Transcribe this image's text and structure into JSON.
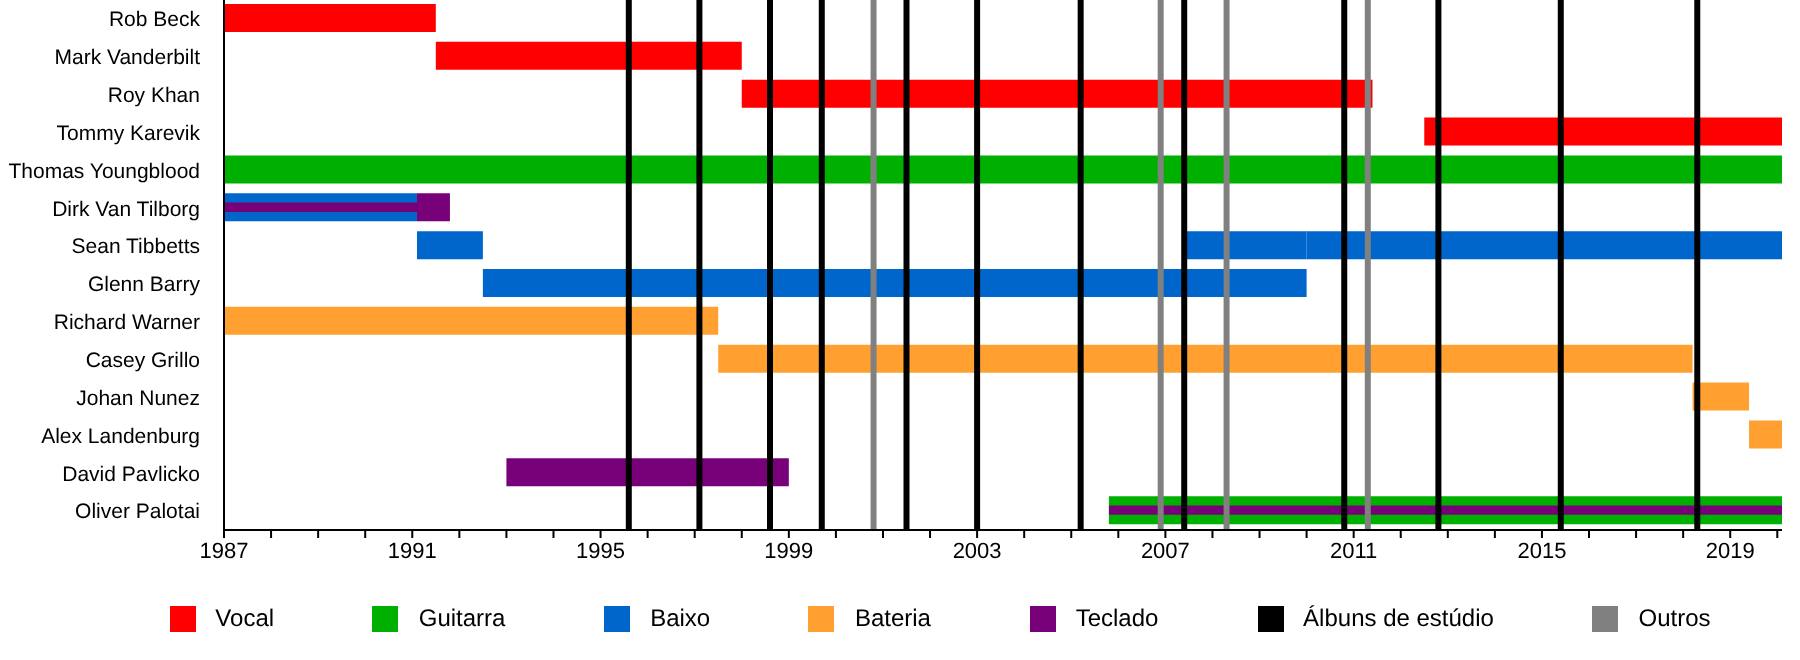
{
  "chart_data": {
    "type": "bar",
    "orientation": "horizontal",
    "categories": [
      "Rob Beck",
      "Mark Vanderbilt",
      "Roy Khan",
      "Tommy Karevik",
      "Thomas Youngblood",
      "Dirk Van Tilborg",
      "Sean Tibbetts",
      "Glenn Barry",
      "Richard Warner",
      "Casey Grillo",
      "Johan Nunez",
      "Alex Landenburg",
      "David Pavlicko",
      "Oliver Palotai"
    ],
    "series": [
      {
        "name": "Vocal",
        "color": "#ff0000",
        "base": [
          1987,
          1991.5,
          1998.0,
          2012.5,
          null,
          null,
          null,
          null,
          null,
          null,
          null,
          null,
          null,
          null
        ],
        "values": [
          4.5,
          6.5,
          13.4,
          7.6,
          null,
          null,
          null,
          null,
          null,
          null,
          null,
          null,
          null,
          null
        ]
      },
      {
        "name": "Guitarra",
        "color": "#00b000",
        "base": [
          null,
          null,
          null,
          null,
          1987,
          null,
          null,
          null,
          null,
          null,
          null,
          null,
          null,
          2005.8
        ],
        "values": [
          null,
          null,
          null,
          null,
          33.1,
          null,
          null,
          null,
          null,
          null,
          null,
          null,
          null,
          14.3
        ]
      },
      {
        "name": "Baixo",
        "color": "#0066cc",
        "base": [
          null,
          null,
          null,
          null,
          null,
          1987,
          1991.1,
          1992.5,
          null,
          null,
          null,
          null,
          null,
          null
        ],
        "values": [
          null,
          null,
          null,
          null,
          null,
          4.1,
          1.4,
          17.5,
          null,
          null,
          null,
          null,
          null,
          null
        ]
      },
      {
        "name": "Bateria",
        "color": "#ffa030",
        "base": [
          null,
          null,
          null,
          null,
          null,
          null,
          null,
          null,
          1987,
          1997.5,
          2018.2,
          2019.4,
          null,
          null
        ],
        "values": [
          null,
          null,
          null,
          null,
          null,
          null,
          null,
          null,
          10.5,
          20.7,
          1.2,
          0.7,
          null,
          null
        ]
      },
      {
        "name": "Teclado",
        "color": "#780078",
        "base": [
          null,
          null,
          null,
          null,
          null,
          1987,
          null,
          null,
          null,
          null,
          null,
          null,
          1993.0,
          2005.8
        ],
        "values": [
          null,
          null,
          null,
          null,
          null,
          4.1,
          null,
          null,
          null,
          null,
          null,
          null,
          6.0,
          14.3
        ]
      },
      {
        "color": "#780078",
        "base": [
          null,
          null,
          null,
          null,
          null,
          1991.1,
          null,
          null,
          null,
          null,
          null,
          null,
          null,
          null
        ],
        "values": [
          null,
          null,
          null,
          null,
          null,
          0.7,
          null,
          null,
          null,
          null,
          null,
          null,
          null,
          null
        ]
      },
      {
        "color": "#0066cc",
        "base": [
          null,
          null,
          null,
          null,
          null,
          null,
          2010.0,
          null,
          null,
          null,
          null,
          null,
          null,
          null
        ],
        "values": [
          null,
          null,
          null,
          null,
          null,
          null,
          10.1,
          null,
          null,
          null,
          null,
          null,
          null,
          null
        ]
      },
      {
        "color": "#0066cc",
        "base": [
          null,
          null,
          null,
          null,
          null,
          null,
          2007.4,
          null,
          null,
          null,
          null,
          null,
          null,
          null
        ],
        "values": [
          null,
          null,
          null,
          null,
          null,
          null,
          2.6,
          null,
          null,
          null,
          null,
          null,
          null,
          null
        ]
      }
    ],
    "xlim": [
      1987,
      2020.1
    ],
    "xticks": [
      1987,
      {
        "value": 1988,
        "label": null
      },
      {
        "value": 1989,
        "label": null
      },
      {
        "value": 1990,
        "label": null
      },
      1991,
      {
        "value": 1992,
        "label": null
      },
      {
        "value": 1993,
        "label": null
      },
      {
        "value": 1994,
        "label": null
      },
      1995,
      {
        "value": 1996,
        "label": null
      },
      {
        "value": 1997,
        "label": null
      },
      {
        "value": 1998,
        "label": null
      },
      1999,
      {
        "value": 2000,
        "label": null
      },
      {
        "value": 2001,
        "label": null
      },
      {
        "value": 2002,
        "label": null
      },
      2003,
      {
        "value": 2004,
        "label": null
      },
      {
        "value": 2005,
        "label": null
      },
      {
        "value": 2006,
        "label": null
      },
      2007,
      {
        "value": 2008,
        "label": null
      },
      {
        "value": 2009,
        "label": null
      },
      {
        "value": 2010,
        "label": null
      },
      2011,
      {
        "value": 2012,
        "label": null
      },
      {
        "value": 2013,
        "label": null
      },
      {
        "value": 2014,
        "label": null
      },
      2015,
      {
        "value": 2016,
        "label": null
      },
      {
        "value": 2017,
        "label": null
      },
      {
        "value": 2018,
        "label": null
      },
      2019,
      {
        "value": 2020,
        "label": null
      }
    ],
    "ref_lines": [
      {
        "axis": "x",
        "value": 1995.6,
        "label": "Álbuns de estúdio",
        "color": "#000000"
      },
      {
        "axis": "x",
        "value": 1997.1,
        "color": "#000000"
      },
      {
        "axis": "x",
        "value": 1998.6,
        "color": "#000000"
      },
      {
        "axis": "x",
        "value": 1999.7,
        "color": "#000000"
      },
      {
        "axis": "x",
        "value": 2001.5,
        "color": "#000000"
      },
      {
        "axis": "x",
        "value": 2003.0,
        "color": "#000000"
      },
      {
        "axis": "x",
        "value": 2005.2,
        "color": "#000000"
      },
      {
        "axis": "x",
        "value": 2007.4,
        "color": "#000000"
      },
      {
        "axis": "x",
        "value": 2010.8,
        "color": "#000000"
      },
      {
        "axis": "x",
        "value": 2012.8,
        "color": "#000000"
      },
      {
        "axis": "x",
        "value": 2015.4,
        "color": "#000000"
      },
      {
        "axis": "x",
        "value": 2018.3,
        "color": "#000000"
      },
      {
        "axis": "x",
        "value": 2000.8,
        "label": "Outros",
        "color": "#808080"
      },
      {
        "axis": "x",
        "value": 2006.9,
        "color": "#808080"
      },
      {
        "axis": "x",
        "value": 2008.3,
        "color": "#808080"
      },
      {
        "axis": "x",
        "value": 2011.3,
        "color": "#808080"
      }
    ],
    "legend": "bottom"
  }
}
